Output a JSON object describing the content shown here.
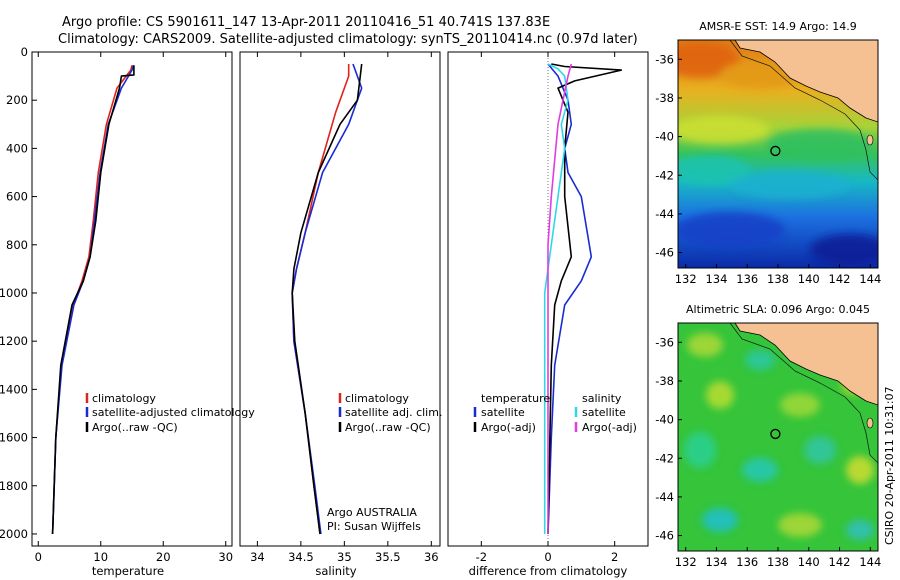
{
  "header": {
    "title_line1": "Argo profile: CS 5901611_147 13-Apr-2011 20110416_51 40.741S 137.83E",
    "title_line2": "Climatology: CARS2009. Satellite-adjusted climatology: synTS_20110414.nc (0.97d later)"
  },
  "side_stamp": "CSIRO 20-Apr-2011 10:31:07",
  "colors": {
    "climatology": "#e0231c",
    "satellite": "#1a2bd6",
    "argo": "#000000",
    "sal_satellite": "#2fd8e6",
    "sal_argo": "#e23ce0",
    "land": "#f5c193"
  },
  "chart_data": [
    {
      "type": "line",
      "xlabel": "temperature",
      "ylabel": "",
      "xlim": [
        -1,
        31
      ],
      "ylim": [
        2050,
        0
      ],
      "xticks": [
        0,
        10,
        20,
        30
      ],
      "yticks": [
        0,
        200,
        400,
        600,
        800,
        1000,
        1200,
        1400,
        1600,
        1800,
        2000
      ],
      "legend": [
        "climatology",
        "satellite-adjusted climatology",
        "Argo(..raw -QC)"
      ],
      "annotations": [],
      "series": [
        {
          "name": "climatology",
          "color": "#e0231c",
          "x": [
            15.0,
            14.8,
            12.6,
            10.9,
            9.6,
            8.8,
            8.1,
            7.0,
            5.6,
            3.7,
            2.8,
            2.3
          ],
          "y": [
            55,
            75,
            150,
            300,
            500,
            700,
            850,
            950,
            1050,
            1300,
            1600,
            2000
          ]
        },
        {
          "name": "satellite-adjusted climatology",
          "color": "#1a2bd6",
          "x": [
            15.2,
            15.0,
            13.3,
            11.2,
            9.9,
            9.0,
            8.3,
            7.2,
            5.7,
            3.8,
            2.8,
            2.3
          ],
          "y": [
            55,
            75,
            150,
            300,
            500,
            700,
            850,
            950,
            1050,
            1300,
            1600,
            2000
          ]
        },
        {
          "name": "Argo(..raw -QC)",
          "color": "#000000",
          "x": [
            15.3,
            15.3,
            13.3,
            13.0,
            11.3,
            10.0,
            9.2,
            8.3,
            7.2,
            5.4,
            3.6,
            2.8,
            2.3
          ],
          "y": [
            55,
            95,
            100,
            150,
            300,
            500,
            700,
            850,
            950,
            1050,
            1300,
            1600,
            2000
          ]
        }
      ]
    },
    {
      "type": "line",
      "xlabel": "salinity",
      "ylabel": "",
      "xlim": [
        33.8,
        36.1
      ],
      "ylim": [
        2050,
        0
      ],
      "xticks": [
        34,
        34.5,
        35,
        35.5,
        36
      ],
      "yticks": [],
      "legend": [
        "climatology",
        "satellite adj. clim.",
        "Argo(..raw -QC)"
      ],
      "annotations": [
        "Argo AUSTRALIA",
        "PI: Susan Wijffels"
      ],
      "series": [
        {
          "name": "climatology",
          "color": "#e0231c",
          "x": [
            35.05,
            35.05,
            34.9,
            34.7,
            34.55,
            34.45,
            34.4,
            34.42,
            34.55,
            34.65,
            34.72
          ],
          "y": [
            50,
            100,
            250,
            500,
            750,
            900,
            1000,
            1200,
            1500,
            1800,
            2000
          ]
        },
        {
          "name": "satellite adj. clim.",
          "color": "#1a2bd6",
          "x": [
            35.1,
            35.2,
            35.05,
            34.75,
            34.55,
            34.45,
            34.4,
            34.42,
            34.55,
            34.66,
            34.73
          ],
          "y": [
            50,
            150,
            300,
            500,
            750,
            900,
            1000,
            1200,
            1500,
            1800,
            2000
          ]
        },
        {
          "name": "Argo(..raw -QC)",
          "color": "#000000",
          "x": [
            35.2,
            35.15,
            34.95,
            34.7,
            34.5,
            34.42,
            34.4,
            34.43,
            34.55,
            34.65,
            34.72
          ],
          "y": [
            50,
            200,
            300,
            500,
            750,
            900,
            1000,
            1200,
            1500,
            1800,
            2000
          ]
        }
      ]
    },
    {
      "type": "line",
      "xlabel": "difference from climatology",
      "ylabel": "",
      "xlim": [
        -3,
        3
      ],
      "ylim": [
        2050,
        0
      ],
      "xticks": [
        -2,
        0,
        2
      ],
      "yticks": [],
      "legend_headers": [
        "temperature",
        "salinity"
      ],
      "legend": [
        "satellite",
        "Argo(-adj)",
        "satellite",
        "Argo(-adj)"
      ],
      "annotations": [],
      "series": [
        {
          "name": "satellite",
          "color": "#1a2bd6",
          "x": [
            0.0,
            0.3,
            0.6,
            0.7,
            0.5,
            0.6,
            1.0,
            1.3,
            1.0,
            0.5,
            0.2,
            0.1,
            0.0
          ],
          "y": [
            50,
            100,
            200,
            300,
            400,
            500,
            600,
            850,
            950,
            1050,
            1300,
            1600,
            2000
          ]
        },
        {
          "name": "Argo(-adj)",
          "color": "#000000",
          "x": [
            0.1,
            0.5,
            2.2,
            0.8,
            0.3,
            0.6,
            0.5,
            0.5,
            0.7,
            0.4,
            0.2,
            0.1,
            0.0
          ],
          "y": [
            50,
            60,
            75,
            120,
            150,
            250,
            400,
            600,
            850,
            950,
            1050,
            1300,
            2000
          ]
        },
        {
          "name": "satellite",
          "color": "#2fd8e6",
          "x": [
            0.0,
            0.3,
            0.5,
            0.6,
            0.4,
            0.5,
            0.3,
            0.1,
            -0.1,
            -0.1,
            -0.1
          ],
          "y": [
            50,
            70,
            100,
            200,
            300,
            400,
            600,
            800,
            1000,
            1500,
            2000
          ]
        },
        {
          "name": "Argo(-adj)",
          "color": "#e23ce0",
          "x": [
            0.7,
            0.6,
            0.3,
            0.1,
            0.0,
            0.0,
            0.0,
            0.0
          ],
          "y": [
            50,
            100,
            300,
            600,
            800,
            1000,
            1500,
            2000
          ]
        }
      ]
    },
    {
      "type": "heatmap",
      "title": "AMSR-E SST: 14.9 Argo: 14.9",
      "xlim": [
        131.5,
        144.5
      ],
      "ylim": [
        -46.8,
        -35
      ],
      "xticks": [
        132,
        134,
        136,
        138,
        140,
        142,
        144
      ],
      "yticks": [
        -36,
        -38,
        -40,
        -42,
        -44,
        -46
      ],
      "marker": {
        "lon": 137.83,
        "lat": -40.741
      }
    },
    {
      "type": "heatmap",
      "title": "Altimetric SLA: 0.096 Argo: 0.045",
      "xlim": [
        131.5,
        144.5
      ],
      "ylim": [
        -46.8,
        -35
      ],
      "xticks": [
        132,
        134,
        136,
        138,
        140,
        142,
        144
      ],
      "yticks": [
        -36,
        -38,
        -40,
        -42,
        -44,
        -46
      ],
      "marker": {
        "lon": 137.83,
        "lat": -40.741
      }
    }
  ]
}
